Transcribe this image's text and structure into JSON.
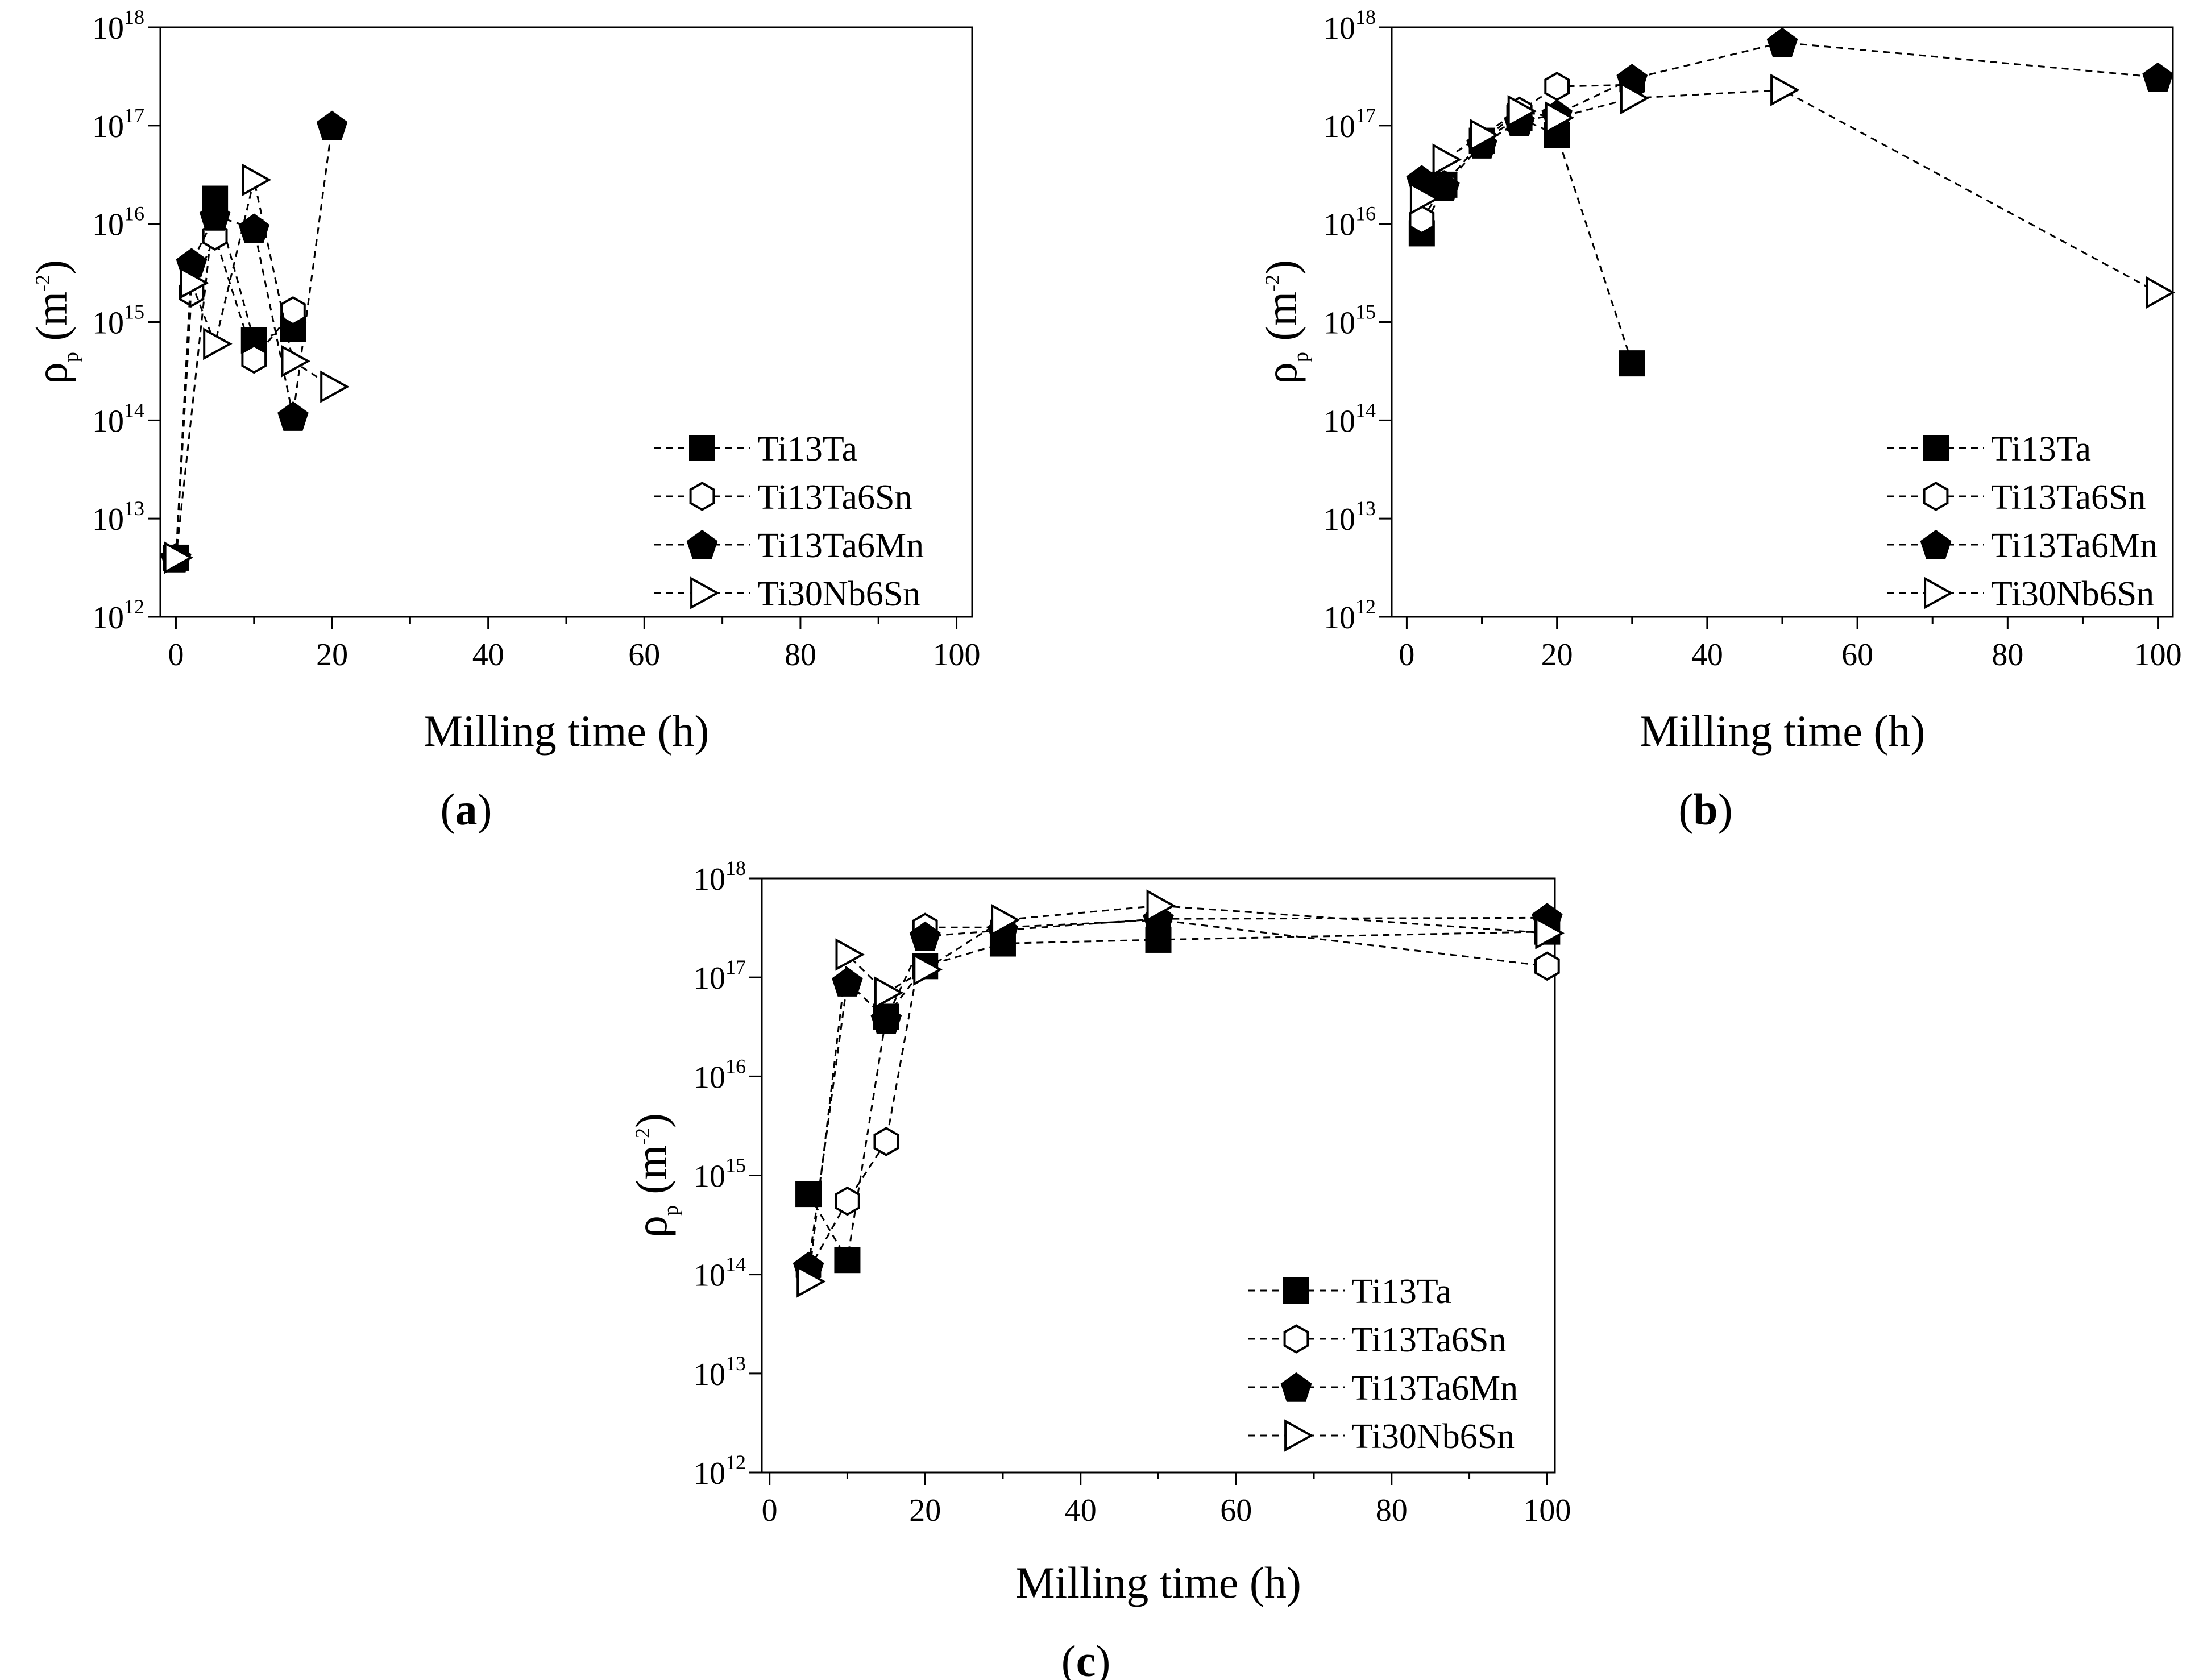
{
  "chart_data": [
    {
      "type": "line",
      "panel": "a",
      "caption_letter": "a",
      "xlabel": "Milling time (h)",
      "ylabel": {
        "base": "ρ",
        "subscript": "p",
        "unit_open": " (m",
        "unit_exp": "-2",
        "unit_close": ")"
      },
      "xlim": [
        -2,
        102
      ],
      "ylim_log10": [
        12,
        18
      ],
      "x_ticks": [
        "0",
        "20",
        "40",
        "60",
        "80",
        "100"
      ],
      "y_ticks": [
        "10",
        "10",
        "10",
        "10",
        "10",
        "10",
        "10"
      ],
      "y_tick_exponents": [
        "12",
        "13",
        "14",
        "15",
        "16",
        "17",
        "18"
      ],
      "legend_position": "bottom-right",
      "series": [
        {
          "name": "Ti13Ta",
          "marker": "square-filled",
          "x": [
            0,
            5,
            10,
            15
          ],
          "y": [
            4000000000000.0,
            1.8e+16,
            650000000000000.0,
            850000000000000.0
          ]
        },
        {
          "name": "Ti13Ta6Sn",
          "marker": "hexagon-open",
          "x": [
            0,
            2,
            5,
            10,
            15
          ],
          "y": [
            4000000000000.0,
            2000000000000000.0,
            7500000000000000.0,
            420000000000000.0,
            1300000000000000.0
          ]
        },
        {
          "name": "Ti13Ta6Mn",
          "marker": "pentagon-filled",
          "x": [
            0,
            2,
            5,
            10,
            15,
            20
          ],
          "y": [
            4000000000000.0,
            4000000000000000.0,
            1.2e+16,
            9000000000000000.0,
            110000000000000.0,
            1e+17
          ]
        },
        {
          "name": "Ti30Nb6Sn",
          "marker": "triangle-right-open",
          "x": [
            0,
            2,
            5,
            10,
            15,
            20
          ],
          "y": [
            4000000000000.0,
            2500000000000000.0,
            600000000000000.0,
            2.8e+16,
            400000000000000.0,
            220000000000000.0
          ]
        }
      ]
    },
    {
      "type": "line",
      "panel": "b",
      "caption_letter": "b",
      "xlabel": "Milling time (h)",
      "ylabel": {
        "base": "ρ",
        "subscript": "p",
        "unit_open": " (m",
        "unit_exp": "-2",
        "unit_close": ")"
      },
      "xlim": [
        -2,
        102
      ],
      "ylim_log10": [
        12,
        18
      ],
      "x_ticks": [
        "0",
        "20",
        "40",
        "60",
        "80",
        "100"
      ],
      "y_ticks": [
        "10",
        "10",
        "10",
        "10",
        "10",
        "10",
        "10"
      ],
      "y_tick_exponents": [
        "12",
        "13",
        "14",
        "15",
        "16",
        "17",
        "18"
      ],
      "legend_position": "bottom-right",
      "series": [
        {
          "name": "Ti13Ta",
          "marker": "square-filled",
          "x": [
            2,
            5,
            10,
            15,
            20,
            30
          ],
          "y": [
            8000000000000000.0,
            2.5e+16,
            7e+16,
            1.2e+17,
            8e+16,
            380000000000000.0
          ]
        },
        {
          "name": "Ti13Ta6Sn",
          "marker": "hexagon-open",
          "x": [
            2,
            5,
            10,
            15,
            20,
            30
          ],
          "y": [
            1.1e+16,
            2.5e+16,
            7e+16,
            1.4e+17,
            2.5e+17,
            2.6e+17
          ]
        },
        {
          "name": "Ti13Ta6Mn",
          "marker": "pentagon-filled",
          "x": [
            2,
            5,
            10,
            15,
            20,
            30,
            50,
            100
          ],
          "y": [
            2.8e+16,
            2.4e+16,
            6.5e+16,
            1.1e+17,
            1.3e+17,
            3e+17,
            7e+17,
            3.1e+17
          ]
        },
        {
          "name": "Ti30Nb6Sn",
          "marker": "triangle-right-open",
          "x": [
            2,
            5,
            10,
            15,
            20,
            30,
            50,
            100
          ],
          "y": [
            1.8e+16,
            4.5e+16,
            8e+16,
            1.4e+17,
            1.2e+17,
            1.9e+17,
            2.3e+17,
            2000000000000000.0
          ]
        }
      ]
    },
    {
      "type": "line",
      "panel": "c",
      "caption_letter": "c",
      "xlabel": "Milling time (h)",
      "ylabel": {
        "base": "ρ",
        "subscript": "p",
        "unit_open": " (m",
        "unit_exp": "-2",
        "unit_close": ")"
      },
      "xlim": [
        -1,
        101
      ],
      "ylim_log10": [
        12,
        18
      ],
      "x_ticks": [
        "0",
        "20",
        "40",
        "60",
        "80",
        "100"
      ],
      "y_ticks": [
        "10",
        "10",
        "10",
        "10",
        "10",
        "10",
        "10"
      ],
      "y_tick_exponents": [
        "12",
        "13",
        "14",
        "15",
        "16",
        "17",
        "18"
      ],
      "legend_position": "bottom-right",
      "series": [
        {
          "name": "Ti13Ta",
          "marker": "square-filled",
          "x": [
            5,
            10,
            15,
            20,
            30,
            50,
            100
          ],
          "y": [
            650000000000000.0,
            140000000000000.0,
            4e+16,
            1.3e+17,
            2.2e+17,
            2.4e+17,
            2.9e+17
          ]
        },
        {
          "name": "Ti13Ta6Sn",
          "marker": "hexagon-open",
          "x": [
            5,
            10,
            15,
            20,
            30,
            50,
            100
          ],
          "y": [
            110000000000000.0,
            550000000000000.0,
            2200000000000000.0,
            3.2e+17,
            3.2e+17,
            3.8e+17,
            1.3e+17
          ]
        },
        {
          "name": "Ti13Ta6Mn",
          "marker": "pentagon-filled",
          "x": [
            5,
            10,
            15,
            20,
            30,
            50,
            100
          ],
          "y": [
            120000000000000.0,
            9e+16,
            3.8e+16,
            2.6e+17,
            3e+17,
            3.9e+17,
            4e+17
          ]
        },
        {
          "name": "Ti30Nb6Sn",
          "marker": "triangle-right-open",
          "x": [
            5,
            10,
            15,
            20,
            30,
            50,
            100
          ],
          "y": [
            85000000000000.0,
            1.7e+17,
            7e+16,
            1.2e+17,
            3.8e+17,
            5.3e+17,
            2.8e+17
          ]
        }
      ]
    }
  ]
}
